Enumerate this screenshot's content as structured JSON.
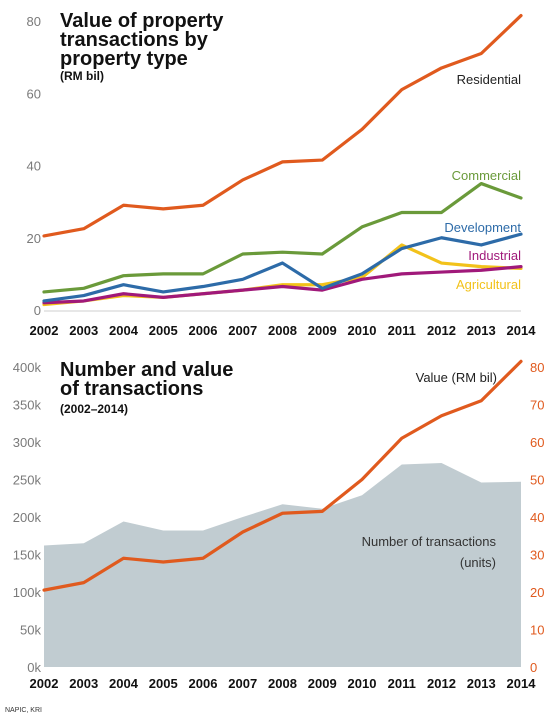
{
  "chart_data": [
    {
      "type": "line",
      "title_lines": [
        "Value of property",
        "transactions by",
        "property type"
      ],
      "subtitle": "(RM bil)",
      "ylim": [
        0,
        80
      ],
      "y_ticks": [
        "0",
        "20",
        "40",
        "60",
        "80"
      ],
      "categories": [
        "2002",
        "2003",
        "2004",
        "2005",
        "2006",
        "2007",
        "2008",
        "2009",
        "2010",
        "2011",
        "2012",
        "2013",
        "2014"
      ],
      "series": [
        {
          "name": "Residential",
          "color": "#e05a1e",
          "values": [
            20.5,
            22.5,
            29,
            28,
            29,
            36,
            41,
            41.5,
            50,
            61,
            67,
            71,
            81.5
          ]
        },
        {
          "name": "Commercial",
          "color": "#6a9a3a",
          "values": [
            5,
            6,
            9.5,
            10,
            10,
            15.5,
            16,
            15.5,
            23,
            27,
            27,
            35,
            31
          ]
        },
        {
          "name": "Development",
          "color": "#2d6ba8",
          "values": [
            2.5,
            4,
            7,
            5,
            6.5,
            8.5,
            13,
            6,
            10,
            17,
            20,
            18,
            21
          ]
        },
        {
          "name": "Industrial",
          "color": "#a0197a",
          "values": [
            2,
            2.5,
            4.5,
            3.5,
            4.5,
            5.5,
            6.5,
            5.5,
            8.5,
            10,
            10.5,
            11,
            12
          ]
        },
        {
          "name": "Agricultural",
          "color": "#f2c21b",
          "values": [
            1.5,
            2.5,
            4,
            3.5,
            4.5,
            5.5,
            7,
            7,
            9,
            18,
            13,
            12,
            11.5
          ]
        }
      ]
    },
    {
      "type": "area",
      "title_lines": [
        "Number and value",
        "of transactions"
      ],
      "subtitle": "(2002–2014)",
      "categories": [
        "2002",
        "2003",
        "2004",
        "2005",
        "2006",
        "2007",
        "2008",
        "2009",
        "2010",
        "2011",
        "2012",
        "2013",
        "2014"
      ],
      "ylim_left": [
        0,
        400000
      ],
      "y_ticks_left": [
        "0k",
        "50k",
        "100k",
        "150k",
        "200k",
        "250k",
        "300k",
        "350k",
        "400k"
      ],
      "ylim_right": [
        0,
        80
      ],
      "y_ticks_right": [
        "0",
        "10",
        "20",
        "30",
        "40",
        "50",
        "60",
        "70",
        "80"
      ],
      "series": [
        {
          "name": "Number of transactions",
          "name_lines": [
            "Number of transactions",
            "(units)"
          ],
          "axis": "left",
          "color": "#c1ccd1",
          "values": [
            162000,
            165000,
            194000,
            182000,
            182000,
            200000,
            217000,
            211000,
            229000,
            270000,
            272000,
            246000,
            247000
          ]
        },
        {
          "name": "Value (RM bil)",
          "axis": "right",
          "color": "#e05a1e",
          "values": [
            20.5,
            22.5,
            29,
            28,
            29,
            36,
            41,
            41.5,
            50,
            61,
            67,
            71,
            81.5
          ]
        }
      ]
    }
  ],
  "source": "NAPIC, KRI"
}
